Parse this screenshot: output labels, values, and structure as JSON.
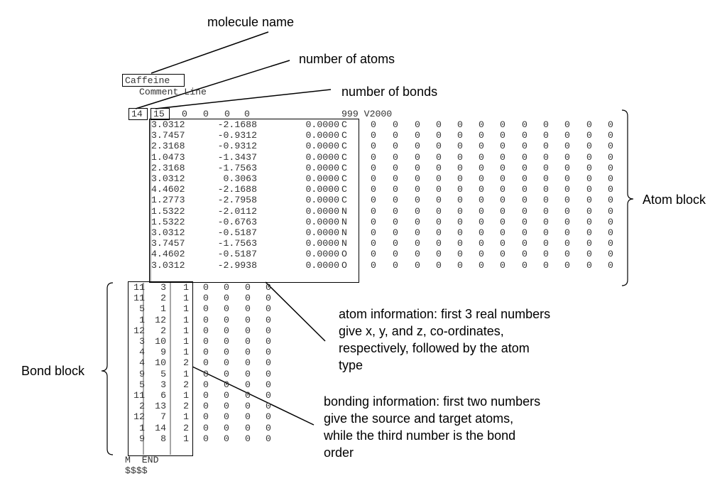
{
  "labels": {
    "molecule_name": "molecule name",
    "number_of_atoms": "number of atoms",
    "number_of_bonds": "number of bonds",
    "atom_block": "Atom block",
    "bond_block": "Bond block"
  },
  "notes": {
    "atom_info": [
      "atom information: first 3 real numbers",
      "give x, y, and z, co-ordinates,",
      "respectively, followed by the atom",
      "type"
    ],
    "bond_info": [
      "bonding information: first two numbers",
      "give the source and target atoms,",
      "while the third number is the bond",
      "order"
    ]
  },
  "molfile": {
    "name": "Caffeine",
    "comment": "Comment Line",
    "counts": {
      "atoms": "14",
      "bonds": "15",
      "rest": [
        "0",
        "0",
        "0",
        "0"
      ],
      "tail": "999 V2000"
    },
    "atoms": [
      {
        "x": "3.0312",
        "y": "-2.1688",
        "z": "0.0000",
        "t": "C"
      },
      {
        "x": "3.7457",
        "y": "-0.9312",
        "z": "0.0000",
        "t": "C"
      },
      {
        "x": "2.3168",
        "y": "-0.9312",
        "z": "0.0000",
        "t": "C"
      },
      {
        "x": "1.0473",
        "y": "-1.3437",
        "z": "0.0000",
        "t": "C"
      },
      {
        "x": "2.3168",
        "y": "-1.7563",
        "z": "0.0000",
        "t": "C"
      },
      {
        "x": "3.0312",
        "y": "0.3063",
        "z": "0.0000",
        "t": "C"
      },
      {
        "x": "4.4602",
        "y": "-2.1688",
        "z": "0.0000",
        "t": "C"
      },
      {
        "x": "1.2773",
        "y": "-2.7958",
        "z": "0.0000",
        "t": "C"
      },
      {
        "x": "1.5322",
        "y": "-2.0112",
        "z": "0.0000",
        "t": "N"
      },
      {
        "x": "1.5322",
        "y": "-0.6763",
        "z": "0.0000",
        "t": "N"
      },
      {
        "x": "3.0312",
        "y": "-0.5187",
        "z": "0.0000",
        "t": "N"
      },
      {
        "x": "3.7457",
        "y": "-1.7563",
        "z": "0.0000",
        "t": "N"
      },
      {
        "x": "4.4602",
        "y": "-0.5187",
        "z": "0.0000",
        "t": "O"
      },
      {
        "x": "3.0312",
        "y": "-2.9938",
        "z": "0.0000",
        "t": "O"
      }
    ],
    "atom_zeros": [
      "0",
      "0",
      "0",
      "0",
      "0",
      "0",
      "0",
      "0",
      "0",
      "0",
      "0",
      "0"
    ],
    "bonds": [
      {
        "a": "11",
        "b": "3",
        "o": "1"
      },
      {
        "a": "11",
        "b": "2",
        "o": "1"
      },
      {
        "a": "5",
        "b": "1",
        "o": "1"
      },
      {
        "a": "1",
        "b": "12",
        "o": "1"
      },
      {
        "a": "12",
        "b": "2",
        "o": "1"
      },
      {
        "a": "3",
        "b": "10",
        "o": "1"
      },
      {
        "a": "4",
        "b": "9",
        "o": "1"
      },
      {
        "a": "4",
        "b": "10",
        "o": "2"
      },
      {
        "a": "9",
        "b": "5",
        "o": "1"
      },
      {
        "a": "5",
        "b": "3",
        "o": "2"
      },
      {
        "a": "11",
        "b": "6",
        "o": "1"
      },
      {
        "a": "2",
        "b": "13",
        "o": "2"
      },
      {
        "a": "12",
        "b": "7",
        "o": "1"
      },
      {
        "a": "1",
        "b": "14",
        "o": "2"
      },
      {
        "a": "9",
        "b": "8",
        "o": "1"
      }
    ],
    "bond_zeros": [
      "0",
      "0",
      "0",
      "0"
    ],
    "end_line": "M  END",
    "terminator": "$$$$"
  }
}
